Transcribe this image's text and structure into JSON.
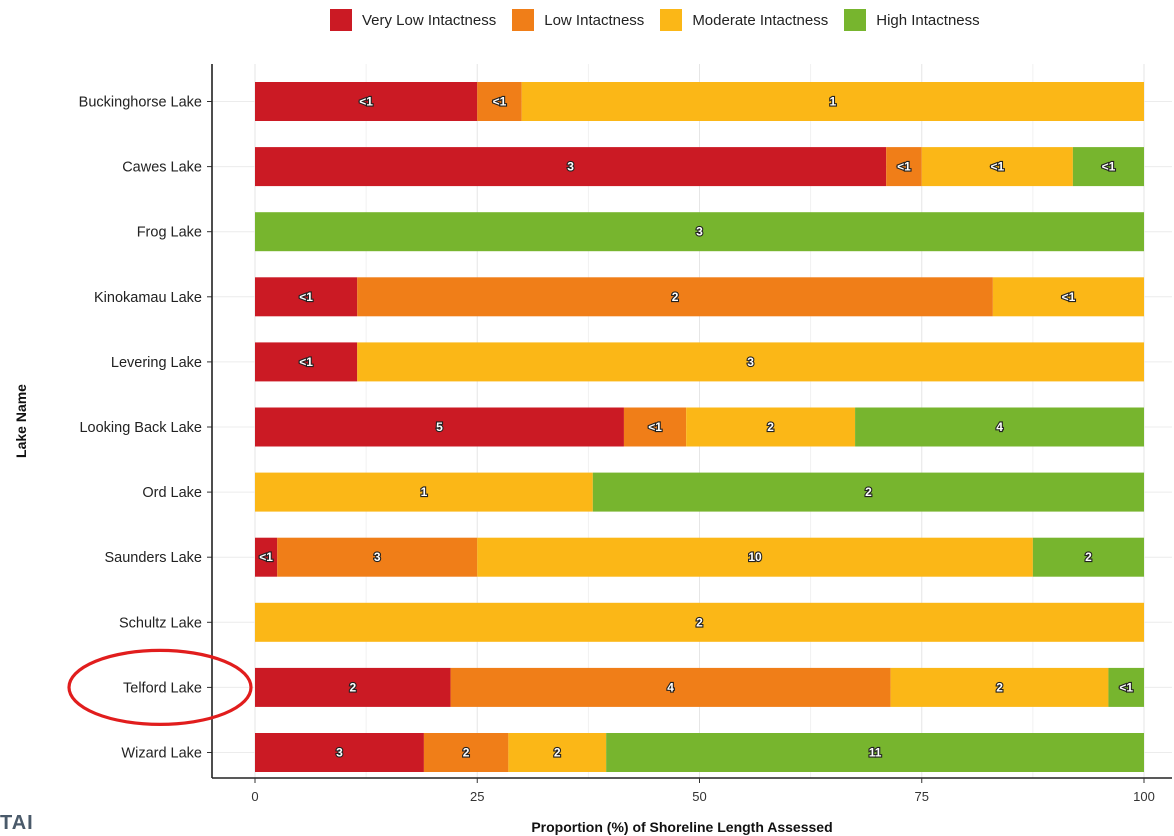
{
  "chart_data": {
    "type": "bar",
    "orientation": "horizontal",
    "stacked": true,
    "title": "",
    "xlabel": "Proportion (%) of Shoreline Length Assessed",
    "ylabel": "Lake Name",
    "xlim": [
      0,
      100
    ],
    "xticks": [
      "0",
      "25",
      "50",
      "75",
      "100"
    ],
    "grid": true,
    "legend_position": "top",
    "categories": [
      "Buckinghorse Lake",
      "Cawes Lake",
      "Frog Lake",
      "Kinokamau Lake",
      "Levering Lake",
      "Looking Back Lake",
      "Ord Lake",
      "Saunders Lake",
      "Schultz Lake",
      "Telford Lake",
      "Wizard Lake"
    ],
    "series": [
      {
        "name": "Very Low Intactness",
        "color": "#cb1a24",
        "values": [
          25,
          71,
          0,
          11.5,
          11.5,
          41.5,
          0,
          2.5,
          0,
          22,
          19
        ],
        "labels": [
          "<1",
          "3",
          "",
          "<1",
          "<1",
          "5",
          "",
          "<1",
          "",
          "2",
          "3"
        ]
      },
      {
        "name": "Low Intactness",
        "color": "#f07e18",
        "values": [
          5,
          4,
          0,
          71.5,
          0,
          7,
          0,
          22.5,
          0,
          49.5,
          9.5
        ],
        "labels": [
          "<1",
          "<1",
          "",
          "2",
          "",
          "<1",
          "",
          "3",
          "",
          "4",
          ""
        ]
      },
      {
        "name": "Moderate Intactness",
        "color": "#fbb717",
        "values": [
          70,
          17,
          0,
          17,
          88.5,
          19,
          38,
          62.5,
          100,
          24.5,
          11
        ],
        "labels": [
          "1",
          "<1",
          "",
          "<1",
          "3",
          "2",
          "1",
          "10",
          "2",
          "2",
          "2"
        ]
      },
      {
        "name": "High Intactness",
        "color": "#77b52e",
        "values": [
          0,
          8,
          100,
          0,
          0,
          32.5,
          62,
          12.5,
          0,
          4,
          60.5
        ],
        "labels": [
          "",
          "<1",
          "3",
          "",
          "",
          "4",
          "2",
          "2",
          "",
          "<1",
          "11"
        ]
      }
    ],
    "extra_labels": [
      {
        "category": "Wizard Lake",
        "series": "Low Intactness",
        "text": "2"
      }
    ],
    "highlight": {
      "category": "Telford Lake",
      "shape": "ellipse",
      "color": "#e11d1d"
    }
  },
  "corner_text": "TAI"
}
